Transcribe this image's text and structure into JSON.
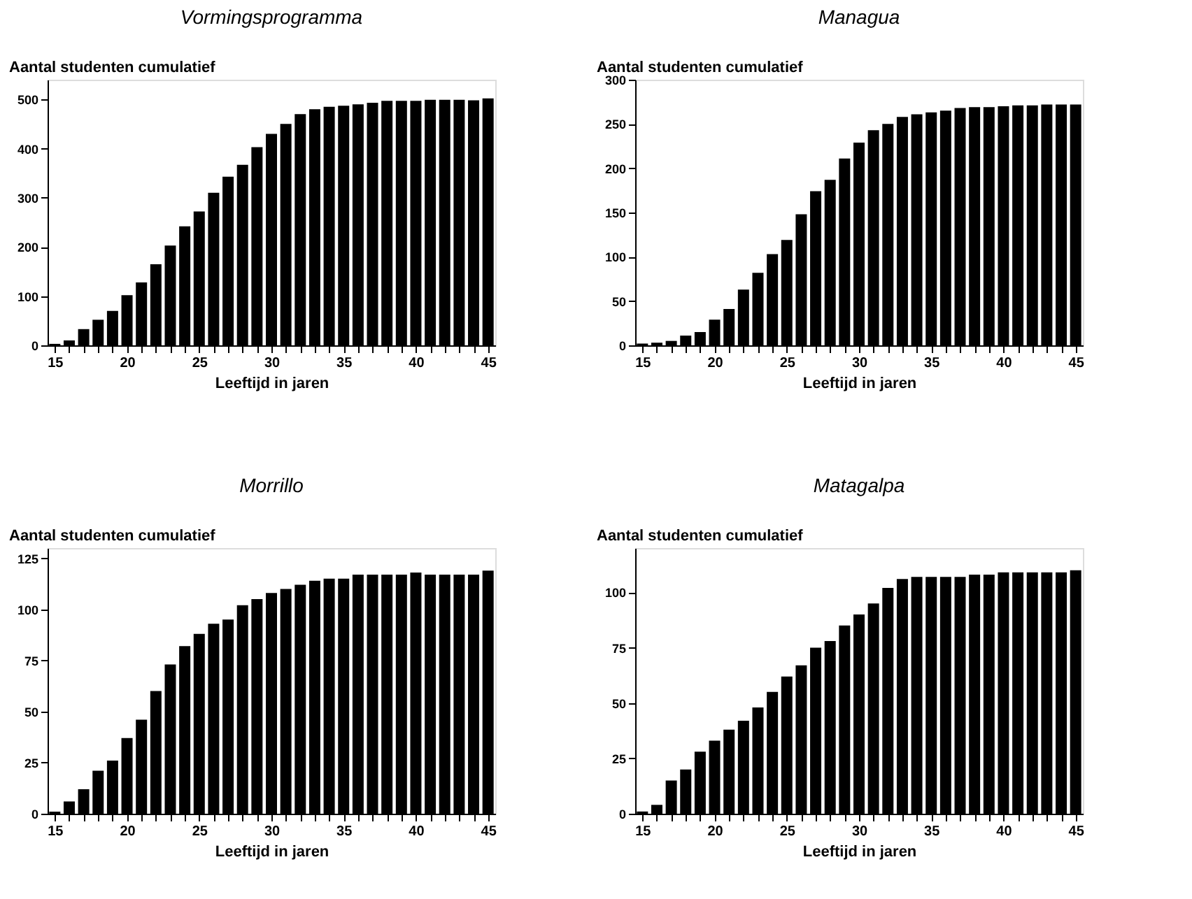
{
  "chart_data": [
    {
      "type": "bar",
      "title": "Vormingsprogramma",
      "xlabel": "Leeftijd in jaren",
      "ylabel": "Aantal studenten cumulatief",
      "color": "#000000",
      "grid": false,
      "x": [
        15,
        16,
        17,
        18,
        19,
        20,
        21,
        22,
        23,
        24,
        25,
        26,
        27,
        28,
        29,
        30,
        31,
        32,
        33,
        34,
        35,
        36,
        37,
        38,
        39,
        40,
        41,
        42,
        43,
        44,
        45
      ],
      "values": [
        3,
        10,
        33,
        52,
        70,
        102,
        128,
        165,
        203,
        242,
        272,
        310,
        343,
        367,
        403,
        430,
        450,
        470,
        480,
        485,
        487,
        490,
        493,
        497,
        497,
        497,
        499,
        499,
        499,
        498,
        502
      ],
      "xlim": [
        14.5,
        45.5
      ],
      "xticks": [
        15,
        {
          "value": 16,
          "label": null
        },
        {
          "value": 17,
          "label": null
        },
        {
          "value": 18,
          "label": null
        },
        {
          "value": 19,
          "label": null
        },
        20,
        {
          "value": 21,
          "label": null
        },
        {
          "value": 22,
          "label": null
        },
        {
          "value": 23,
          "label": null
        },
        {
          "value": 24,
          "label": null
        },
        25,
        {
          "value": 26,
          "label": null
        },
        {
          "value": 27,
          "label": null
        },
        {
          "value": 28,
          "label": null
        },
        {
          "value": 29,
          "label": null
        },
        30,
        {
          "value": 31,
          "label": null
        },
        {
          "value": 32,
          "label": null
        },
        {
          "value": 33,
          "label": null
        },
        {
          "value": 34,
          "label": null
        },
        35,
        {
          "value": 36,
          "label": null
        },
        {
          "value": 37,
          "label": null
        },
        {
          "value": 38,
          "label": null
        },
        {
          "value": 39,
          "label": null
        },
        40,
        {
          "value": 41,
          "label": null
        },
        {
          "value": 42,
          "label": null
        },
        {
          "value": 43,
          "label": null
        },
        {
          "value": 44,
          "label": null
        },
        45
      ],
      "ylim": [
        0,
        540
      ],
      "yticks": [
        0,
        100,
        200,
        300,
        400,
        500
      ]
    },
    {
      "type": "bar",
      "title": "Managua",
      "xlabel": "Leeftijd in jaren",
      "ylabel": "Aantal studenten cumulatief",
      "color": "#000000",
      "grid": false,
      "x": [
        15,
        16,
        17,
        18,
        19,
        20,
        21,
        22,
        23,
        24,
        25,
        26,
        27,
        28,
        29,
        30,
        31,
        32,
        33,
        34,
        35,
        36,
        37,
        38,
        39,
        40,
        41,
        42,
        43,
        44,
        45
      ],
      "values": [
        2,
        3,
        5,
        11,
        15,
        29,
        41,
        63,
        82,
        103,
        119,
        148,
        174,
        187,
        211,
        229,
        243,
        250,
        258,
        261,
        263,
        265,
        268,
        269,
        269,
        270,
        271,
        271,
        272,
        272,
        272
      ],
      "xlim": [
        14.5,
        45.5
      ],
      "xticks": [
        15,
        {
          "value": 16,
          "label": null
        },
        {
          "value": 17,
          "label": null
        },
        {
          "value": 18,
          "label": null
        },
        {
          "value": 19,
          "label": null
        },
        20,
        {
          "value": 21,
          "label": null
        },
        {
          "value": 22,
          "label": null
        },
        {
          "value": 23,
          "label": null
        },
        {
          "value": 24,
          "label": null
        },
        25,
        {
          "value": 26,
          "label": null
        },
        {
          "value": 27,
          "label": null
        },
        {
          "value": 28,
          "label": null
        },
        {
          "value": 29,
          "label": null
        },
        30,
        {
          "value": 31,
          "label": null
        },
        {
          "value": 32,
          "label": null
        },
        {
          "value": 33,
          "label": null
        },
        {
          "value": 34,
          "label": null
        },
        35,
        {
          "value": 36,
          "label": null
        },
        {
          "value": 37,
          "label": null
        },
        {
          "value": 38,
          "label": null
        },
        {
          "value": 39,
          "label": null
        },
        40,
        {
          "value": 41,
          "label": null
        },
        {
          "value": 42,
          "label": null
        },
        {
          "value": 43,
          "label": null
        },
        {
          "value": 44,
          "label": null
        },
        45
      ],
      "ylim": [
        0,
        300
      ],
      "yticks": [
        0,
        50,
        100,
        150,
        200,
        250,
        300
      ]
    },
    {
      "type": "bar",
      "title": "Morrillo",
      "xlabel": "Leeftijd in jaren",
      "ylabel": "Aantal studenten cumulatief",
      "color": "#000000",
      "grid": false,
      "x": [
        15,
        16,
        17,
        18,
        19,
        20,
        21,
        22,
        23,
        24,
        25,
        26,
        27,
        28,
        29,
        30,
        31,
        32,
        33,
        34,
        35,
        36,
        37,
        38,
        39,
        40,
        41,
        42,
        43,
        44,
        45
      ],
      "values": [
        1,
        6,
        12,
        21,
        26,
        37,
        46,
        60,
        73,
        82,
        88,
        93,
        95,
        102,
        105,
        108,
        110,
        112,
        114,
        115,
        115,
        117,
        117,
        117,
        117,
        118,
        117,
        117,
        117,
        117,
        119
      ],
      "xlim": [
        14.5,
        45.5
      ],
      "xticks": [
        15,
        {
          "value": 16,
          "label": null
        },
        {
          "value": 17,
          "label": null
        },
        {
          "value": 18,
          "label": null
        },
        {
          "value": 19,
          "label": null
        },
        20,
        {
          "value": 21,
          "label": null
        },
        {
          "value": 22,
          "label": null
        },
        {
          "value": 23,
          "label": null
        },
        {
          "value": 24,
          "label": null
        },
        25,
        {
          "value": 26,
          "label": null
        },
        {
          "value": 27,
          "label": null
        },
        {
          "value": 28,
          "label": null
        },
        {
          "value": 29,
          "label": null
        },
        30,
        {
          "value": 31,
          "label": null
        },
        {
          "value": 32,
          "label": null
        },
        {
          "value": 33,
          "label": null
        },
        {
          "value": 34,
          "label": null
        },
        35,
        {
          "value": 36,
          "label": null
        },
        {
          "value": 37,
          "label": null
        },
        {
          "value": 38,
          "label": null
        },
        {
          "value": 39,
          "label": null
        },
        40,
        {
          "value": 41,
          "label": null
        },
        {
          "value": 42,
          "label": null
        },
        {
          "value": 43,
          "label": null
        },
        {
          "value": 44,
          "label": null
        },
        45
      ],
      "ylim": [
        0,
        130
      ],
      "yticks": [
        0,
        25,
        50,
        75,
        100,
        125
      ]
    },
    {
      "type": "bar",
      "title": "Matagalpa",
      "xlabel": "Leeftijd in jaren",
      "ylabel": "Aantal studenten cumulatief",
      "color": "#000000",
      "grid": false,
      "x": [
        15,
        16,
        17,
        18,
        19,
        20,
        21,
        22,
        23,
        24,
        25,
        26,
        27,
        28,
        29,
        30,
        31,
        32,
        33,
        34,
        35,
        36,
        37,
        38,
        39,
        40,
        41,
        42,
        43,
        44,
        45
      ],
      "values": [
        1,
        4,
        15,
        20,
        28,
        33,
        38,
        42,
        48,
        55,
        62,
        67,
        75,
        78,
        85,
        90,
        95,
        102,
        106,
        107,
        107,
        107,
        107,
        108,
        108,
        109,
        109,
        109,
        109,
        109,
        110
      ],
      "xlim": [
        14.5,
        45.5
      ],
      "xticks": [
        15,
        {
          "value": 16,
          "label": null
        },
        {
          "value": 17,
          "label": null
        },
        {
          "value": 18,
          "label": null
        },
        {
          "value": 19,
          "label": null
        },
        20,
        {
          "value": 21,
          "label": null
        },
        {
          "value": 22,
          "label": null
        },
        {
          "value": 23,
          "label": null
        },
        {
          "value": 24,
          "label": null
        },
        25,
        {
          "value": 26,
          "label": null
        },
        {
          "value": 27,
          "label": null
        },
        {
          "value": 28,
          "label": null
        },
        {
          "value": 29,
          "label": null
        },
        30,
        {
          "value": 31,
          "label": null
        },
        {
          "value": 32,
          "label": null
        },
        {
          "value": 33,
          "label": null
        },
        {
          "value": 34,
          "label": null
        },
        35,
        {
          "value": 36,
          "label": null
        },
        {
          "value": 37,
          "label": null
        },
        {
          "value": 38,
          "label": null
        },
        {
          "value": 39,
          "label": null
        },
        40,
        {
          "value": 41,
          "label": null
        },
        {
          "value": 42,
          "label": null
        },
        {
          "value": 43,
          "label": null
        },
        {
          "value": 44,
          "label": null
        },
        45
      ],
      "ylim": [
        0,
        120
      ],
      "yticks": [
        0,
        25,
        50,
        75,
        100
      ]
    }
  ]
}
